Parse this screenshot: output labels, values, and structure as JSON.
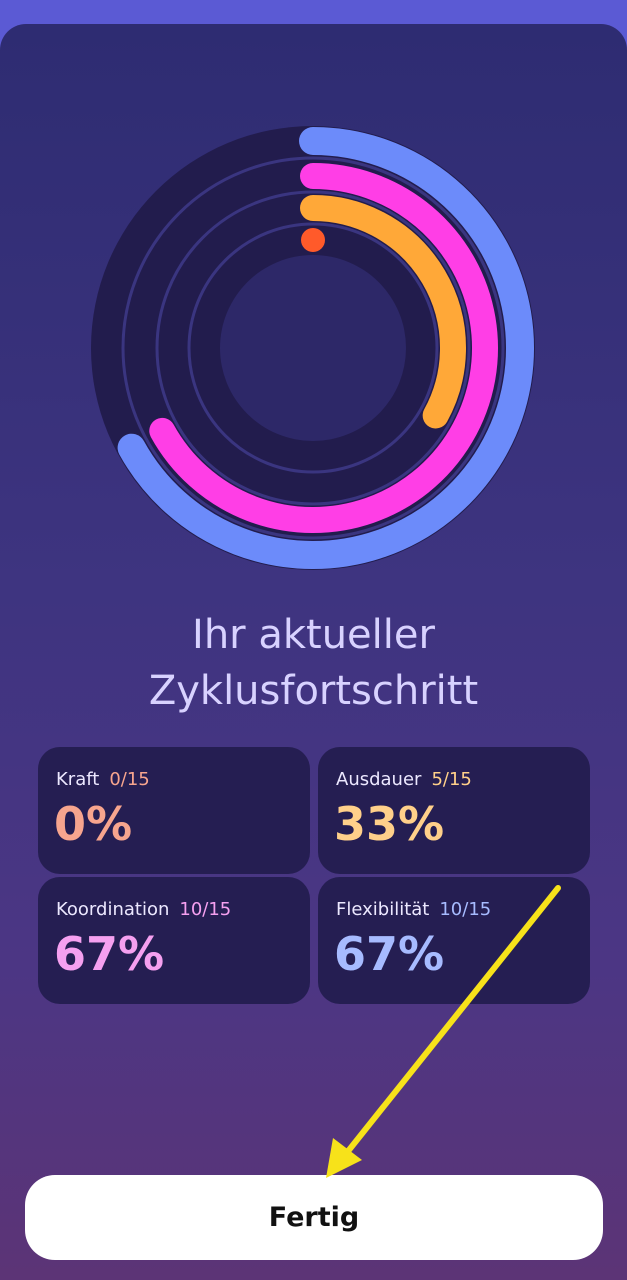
{
  "title_lines": [
    "Ihr aktueller",
    "Zyklusfortschritt"
  ],
  "cards": [
    {
      "name": "Kraft",
      "count": "0/15",
      "value": 0,
      "value_label": "0%",
      "color": "#f7a58e",
      "ring_color": "#ff5a2a"
    },
    {
      "name": "Ausdauer",
      "count": "5/15",
      "value": 33,
      "value_label": "33%",
      "color": "#ffd08a",
      "ring_color": "#ffa838"
    },
    {
      "name": "Koordination",
      "count": "10/15",
      "value": 67,
      "value_label": "67%",
      "color": "#f5a0f0",
      "ring_color": "#ff3ee6"
    },
    {
      "name": "Flexibilität",
      "count": "10/15",
      "value": 67,
      "value_label": "67%",
      "color": "#a7bbff",
      "ring_color": "#6c8bfa"
    }
  ],
  "button": "Fertig"
}
